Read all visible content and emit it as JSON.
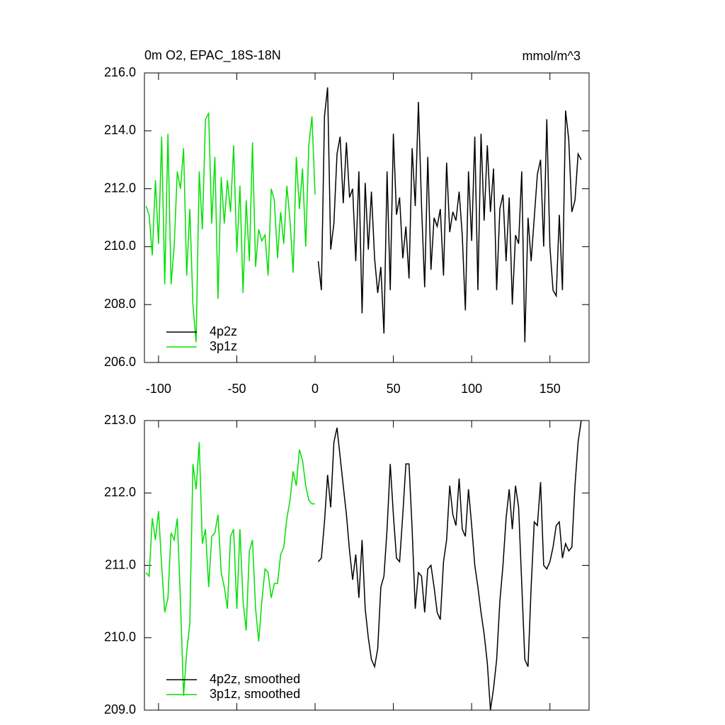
{
  "chart_data": [
    {
      "type": "line",
      "title": "0m O2, EPAC_18S-18N",
      "units": "mmol/m^3",
      "xlim": [
        -109,
        175
      ],
      "xticks": [
        -100,
        -50,
        0,
        50,
        100,
        150
      ],
      "ylim": [
        206,
        216
      ],
      "yticks": [
        {
          "value": 206,
          "label": "206.0"
        },
        {
          "value": 208,
          "label": "208.0"
        },
        {
          "value": 210,
          "label": "210.0"
        },
        {
          "value": 212,
          "label": "212.0"
        },
        {
          "value": 214,
          "label": "214.0"
        },
        {
          "value": 216,
          "label": "216.0"
        }
      ],
      "legend": "lower left",
      "series": [
        {
          "name": "4p2z",
          "color": "#000000",
          "x": [
            2,
            4,
            6,
            8,
            10,
            12,
            14,
            16,
            18,
            20,
            22,
            24,
            26,
            28,
            30,
            32,
            34,
            36,
            38,
            40,
            42,
            44,
            46,
            48,
            50,
            52,
            54,
            56,
            58,
            60,
            62,
            64,
            66,
            68,
            70,
            72,
            74,
            76,
            78,
            80,
            82,
            84,
            86,
            88,
            90,
            92,
            94,
            96,
            98,
            100,
            102,
            104,
            106,
            108,
            110,
            112,
            114,
            116,
            118,
            120,
            122,
            124,
            126,
            128,
            130,
            132,
            134,
            136,
            138,
            140,
            142,
            144,
            146,
            148,
            150,
            152,
            154,
            156,
            158,
            160,
            162,
            164,
            166,
            168,
            170
          ],
          "values": [
            209.5,
            208.5,
            214.5,
            215.5,
            209.9,
            210.8,
            213.2,
            213.8,
            211.5,
            213.6,
            211.7,
            212.0,
            209.5,
            212.6,
            207.7,
            212.2,
            209.9,
            211.9,
            209.6,
            208.4,
            209.3,
            207.0,
            212.6,
            208.5,
            213.9,
            211.1,
            211.7,
            209.6,
            210.7,
            208.9,
            213.4,
            211.4,
            215.0,
            211.4,
            208.6,
            213.1,
            209.2,
            211.0,
            210.7,
            211.3,
            209.0,
            212.9,
            210.5,
            211.2,
            210.9,
            211.9,
            210.4,
            207.8,
            212.6,
            210.2,
            213.8,
            208.5,
            213.9,
            210.9,
            213.5,
            211.2,
            212.7,
            208.5,
            211.3,
            211.8,
            209.5,
            211.7,
            208.0,
            210.4,
            210.1,
            212.6,
            206.7,
            211.0,
            209.5,
            211.0,
            212.5,
            213.0,
            210.0,
            214.4,
            210.0,
            208.5,
            208.3,
            211.1,
            208.5,
            214.7,
            213.7,
            211.2,
            211.6,
            213.2,
            213.0
          ]
        },
        {
          "name": "3p1z",
          "color": "#00e000",
          "x": [
            -108,
            -106,
            -104,
            -102,
            -100,
            -98,
            -96,
            -94,
            -92,
            -90,
            -88,
            -86,
            -84,
            -82,
            -80,
            -78,
            -76,
            -74,
            -72,
            -70,
            -68,
            -66,
            -64,
            -62,
            -60,
            -58,
            -56,
            -54,
            -52,
            -50,
            -48,
            -46,
            -44,
            -42,
            -40,
            -38,
            -36,
            -34,
            -32,
            -30,
            -28,
            -26,
            -24,
            -22,
            -20,
            -18,
            -16,
            -14,
            -12,
            -10,
            -8,
            -6,
            -4,
            -2,
            0
          ],
          "values": [
            211.4,
            211.1,
            209.7,
            212.3,
            210.1,
            213.8,
            208.7,
            213.9,
            208.7,
            210.0,
            212.6,
            212.0,
            213.4,
            209.0,
            211.3,
            208.0,
            206.7,
            212.6,
            210.6,
            214.4,
            214.6,
            210.8,
            213.1,
            208.2,
            212.4,
            210.8,
            212.3,
            211.2,
            213.5,
            209.8,
            212.1,
            208.4,
            211.6,
            209.5,
            213.6,
            209.3,
            210.6,
            210.2,
            210.4,
            209.0,
            212.0,
            211.6,
            209.6,
            211.2,
            210.1,
            212.1,
            210.9,
            209.1,
            213.1,
            211.3,
            212.7,
            210.0,
            213.5,
            214.5,
            211.8
          ]
        }
      ]
    },
    {
      "type": "line",
      "xlim": [
        -109,
        175
      ],
      "xticks": [
        -100,
        -50,
        0,
        50,
        100,
        150
      ],
      "ylim": [
        209,
        213
      ],
      "yticks": [
        {
          "value": 209,
          "label": "209.0"
        },
        {
          "value": 210,
          "label": "210.0"
        },
        {
          "value": 211,
          "label": "211.0"
        },
        {
          "value": 212,
          "label": "212.0"
        },
        {
          "value": 213,
          "label": "213.0"
        }
      ],
      "legend": "lower left",
      "series": [
        {
          "name": "4p2z, smoothed",
          "color": "#000000",
          "x": [
            2,
            4,
            6,
            8,
            10,
            12,
            14,
            16,
            18,
            20,
            22,
            24,
            26,
            28,
            30,
            32,
            34,
            36,
            38,
            40,
            42,
            44,
            46,
            48,
            50,
            52,
            54,
            56,
            58,
            60,
            62,
            64,
            66,
            68,
            70,
            72,
            74,
            76,
            78,
            80,
            82,
            84,
            86,
            88,
            90,
            92,
            94,
            96,
            98,
            100,
            102,
            104,
            106,
            108,
            110,
            112,
            114,
            116,
            118,
            120,
            122,
            124,
            126,
            128,
            130,
            132,
            134,
            136,
            138,
            140,
            142,
            144,
            146,
            148,
            150,
            152,
            154,
            156,
            158,
            160,
            162,
            164,
            166,
            168,
            170
          ],
          "values": [
            211.05,
            211.1,
            211.6,
            212.25,
            211.8,
            212.7,
            212.9,
            212.5,
            212.1,
            211.7,
            211.2,
            210.8,
            211.15,
            210.55,
            211.35,
            210.4,
            210.0,
            209.7,
            209.6,
            209.85,
            210.7,
            210.85,
            211.5,
            212.4,
            211.7,
            211.1,
            211.05,
            211.7,
            212.4,
            212.4,
            211.5,
            210.4,
            210.9,
            210.85,
            210.35,
            210.95,
            211.0,
            210.7,
            210.35,
            210.25,
            211.05,
            211.35,
            212.1,
            211.7,
            211.55,
            212.2,
            211.5,
            211.4,
            212.05,
            211.55,
            211.0,
            210.7,
            210.35,
            210.05,
            209.65,
            209.0,
            209.3,
            209.7,
            210.5,
            211.0,
            211.65,
            212.05,
            211.5,
            212.1,
            211.8,
            210.75,
            209.7,
            209.6,
            210.7,
            211.6,
            211.55,
            212.15,
            211.0,
            210.95,
            211.05,
            211.25,
            211.55,
            211.6,
            211.1,
            211.3,
            211.2,
            211.25,
            212.1,
            212.7,
            213.0
          ]
        },
        {
          "name": "3p1z, smoothed",
          "color": "#00e000",
          "x": [
            -108,
            -106,
            -104,
            -102,
            -100,
            -98,
            -96,
            -94,
            -92,
            -90,
            -88,
            -86,
            -84,
            -82,
            -80,
            -78,
            -76,
            -74,
            -72,
            -70,
            -68,
            -66,
            -64,
            -62,
            -60,
            -58,
            -56,
            -54,
            -52,
            -50,
            -48,
            -46,
            -44,
            -42,
            -40,
            -38,
            -36,
            -34,
            -32,
            -30,
            -28,
            -26,
            -24,
            -22,
            -20,
            -18,
            -16,
            -14,
            -12,
            -10,
            -8,
            -6,
            -4,
            -2,
            0
          ],
          "values": [
            210.9,
            210.85,
            211.65,
            211.35,
            211.75,
            211.0,
            210.35,
            210.55,
            211.45,
            211.35,
            211.65,
            210.5,
            209.2,
            209.8,
            210.2,
            212.4,
            212.05,
            212.7,
            211.3,
            211.5,
            210.7,
            211.4,
            211.45,
            211.7,
            210.9,
            210.7,
            210.4,
            211.4,
            211.5,
            210.4,
            211.5,
            210.5,
            210.1,
            211.2,
            211.35,
            210.4,
            209.95,
            210.5,
            210.95,
            210.9,
            210.55,
            210.75,
            210.75,
            211.15,
            211.25,
            211.65,
            211.9,
            212.3,
            212.1,
            212.6,
            212.45,
            212.1,
            211.9,
            211.85,
            211.85
          ]
        }
      ]
    }
  ]
}
